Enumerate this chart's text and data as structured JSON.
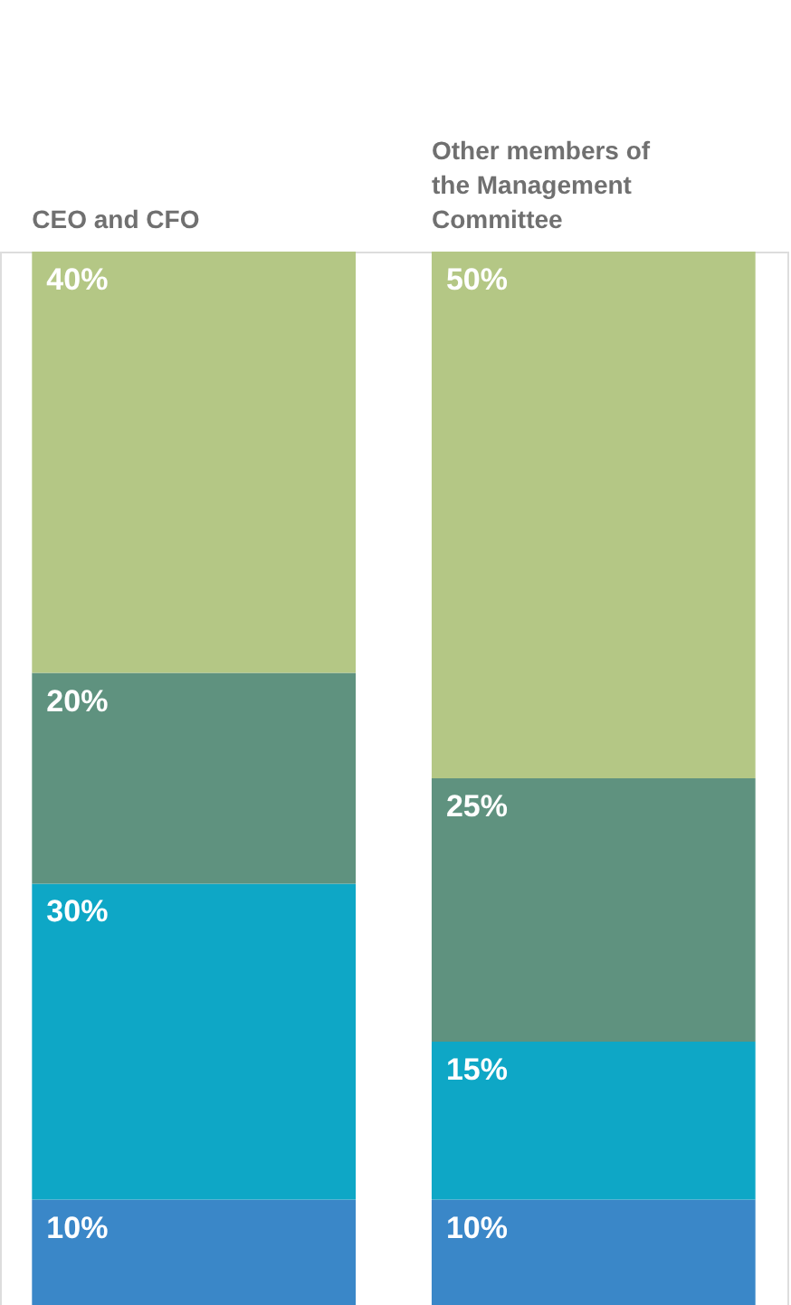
{
  "chart_data": {
    "type": "bar",
    "stacked": true,
    "categories": [
      "CEO and CFO",
      "Other members of the Management Committee"
    ],
    "series": [
      {
        "color": "#3a87c8",
        "values": [
          10,
          10
        ],
        "value_labels": [
          "10%",
          "10%"
        ]
      },
      {
        "color": "#0ea7c6",
        "values": [
          30,
          15
        ],
        "value_labels": [
          "30%",
          "15%"
        ]
      },
      {
        "color": "#5f927f",
        "values": [
          20,
          25
        ],
        "value_labels": [
          "20%",
          "25%"
        ]
      },
      {
        "color": "#b4c785",
        "values": [
          40,
          50
        ],
        "value_labels": [
          "40%",
          "50%"
        ]
      }
    ],
    "ylim": [
      0,
      100
    ],
    "tick_labels": false
  }
}
